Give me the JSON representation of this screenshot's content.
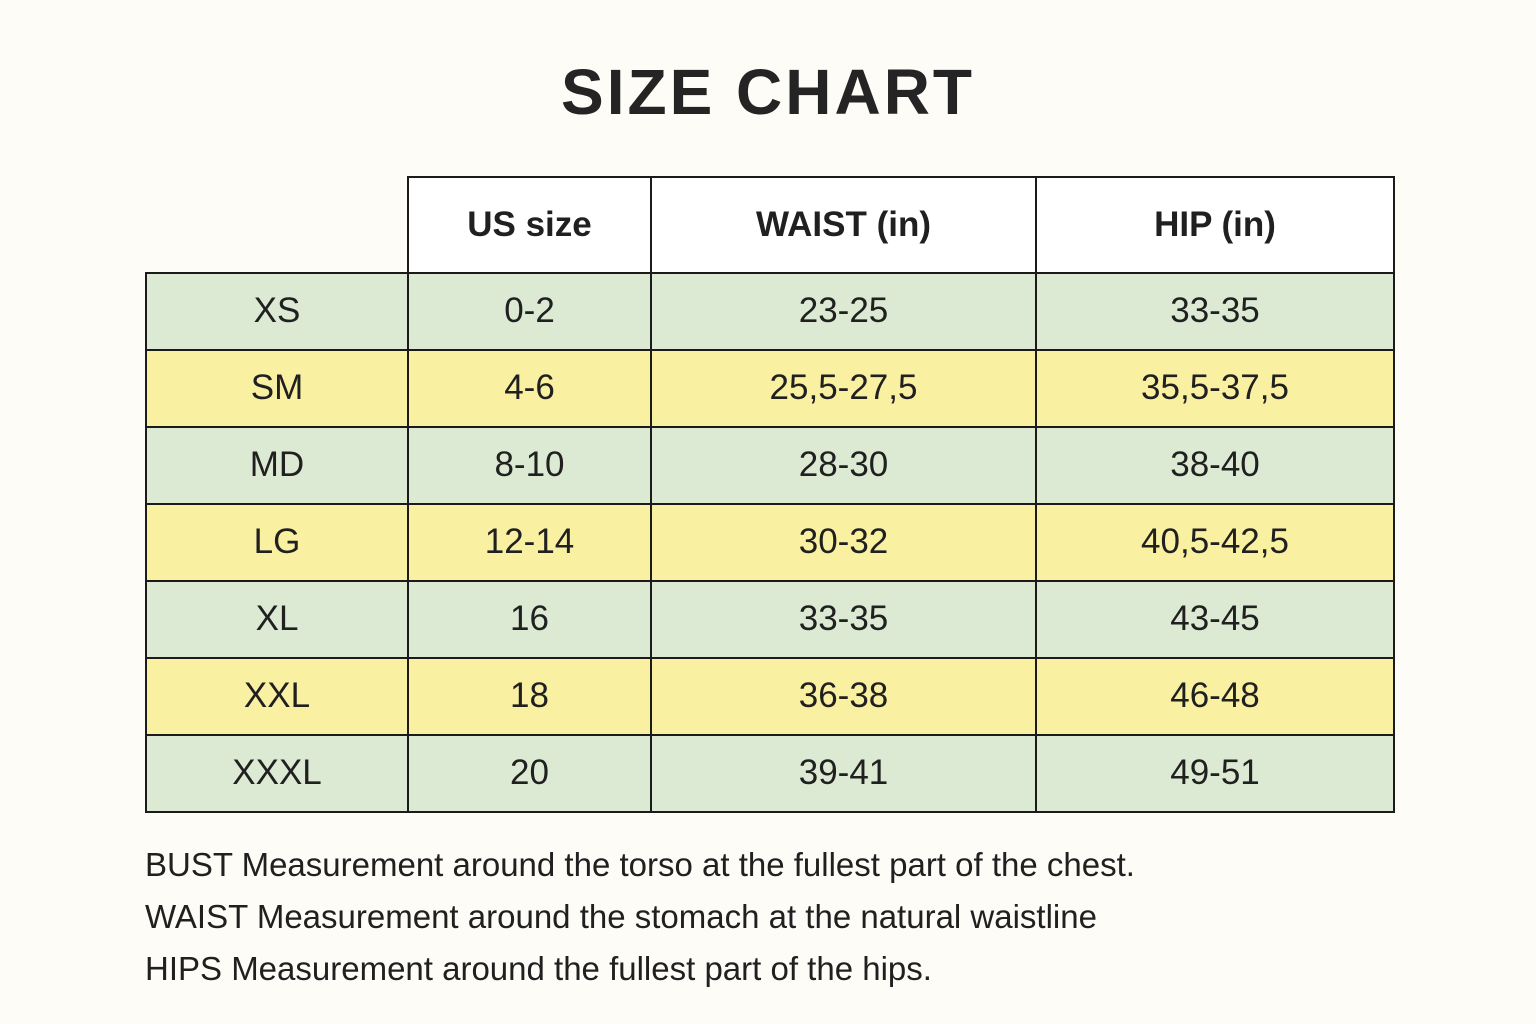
{
  "title": "SIZE CHART",
  "colors": {
    "background": "#fdfcf7",
    "title_text": "#242424",
    "text": "#202020",
    "border": "#1b1b1b",
    "header_bg": "#ffffff",
    "row_green": "#dcead3",
    "row_yellow": "#faf0a1"
  },
  "chart_data": {
    "type": "table",
    "title": "SIZE CHART",
    "columns": [
      "",
      "US size",
      "WAIST (in)",
      "HIP (in)"
    ],
    "rows": [
      {
        "size": "XS",
        "us_size": "0-2",
        "waist_in": "23-25",
        "hip_in": "33-35",
        "row_color": "green"
      },
      {
        "size": "SM",
        "us_size": "4-6",
        "waist_in": "25,5-27,5",
        "hip_in": "35,5-37,5",
        "row_color": "yellow"
      },
      {
        "size": "MD",
        "us_size": "8-10",
        "waist_in": "28-30",
        "hip_in": "38-40",
        "row_color": "green"
      },
      {
        "size": "LG",
        "us_size": "12-14",
        "waist_in": "30-32",
        "hip_in": "40,5-42,5",
        "row_color": "yellow"
      },
      {
        "size": "XL",
        "us_size": "16",
        "waist_in": "33-35",
        "hip_in": "43-45",
        "row_color": "green"
      },
      {
        "size": "XXL",
        "us_size": "18",
        "waist_in": "36-38",
        "hip_in": "46-48",
        "row_color": "yellow"
      },
      {
        "size": "XXXL",
        "us_size": "20",
        "waist_in": "39-41",
        "hip_in": "49-51",
        "row_color": "green"
      }
    ]
  },
  "notes": [
    "BUST Measurement around the torso at the fullest part of the chest.",
    "WAIST Measurement around the stomach at the natural waistline",
    "HIPS Measurement around the fullest part of the hips."
  ]
}
